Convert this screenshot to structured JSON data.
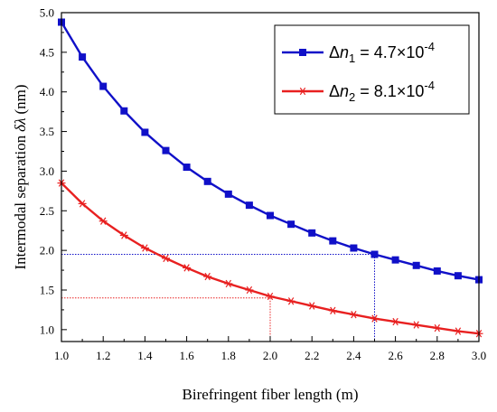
{
  "chart_data": {
    "type": "line",
    "xlabel": "Birefringent fiber length (m)",
    "ylabel_main": "Intermodal separation",
    "ylabel_symbol": "δλ",
    "ylabel_unit": "(nm)",
    "xlim": [
      1.0,
      3.0
    ],
    "ylim": [
      0.85,
      5.0
    ],
    "x_ticks": [
      1.0,
      1.2,
      1.4,
      1.6,
      1.8,
      2.0,
      2.2,
      2.4,
      2.6,
      2.8,
      3.0
    ],
    "x_tick_labels": [
      "1.0",
      "1.2",
      "1.4",
      "1.6",
      "1.8",
      "2.0",
      "2.2",
      "2.4",
      "2.6",
      "2.8",
      "3.0"
    ],
    "y_ticks": [
      1.0,
      1.5,
      2.0,
      2.5,
      3.0,
      3.5,
      4.0,
      4.5,
      5.0
    ],
    "y_tick_labels": [
      "1.0",
      "1.5",
      "2.0",
      "2.5",
      "3.0",
      "3.5",
      "4.0",
      "4.5",
      "5.0"
    ],
    "grid": false,
    "legend_placement": "top-right",
    "x": [
      1.0,
      1.1,
      1.2,
      1.3,
      1.4,
      1.5,
      1.6,
      1.7,
      1.8,
      1.9,
      2.0,
      2.1,
      2.2,
      2.3,
      2.4,
      2.5,
      2.6,
      2.7,
      2.8,
      2.9,
      3.0
    ],
    "series": [
      {
        "legend_delta": "Δ",
        "legend_var": "n",
        "legend_sub": "1",
        "legend_eq": " = 4.7×10",
        "legend_sup": "-4",
        "color": "#1010c8",
        "marker": "square",
        "values": [
          4.88,
          4.44,
          4.07,
          3.76,
          3.49,
          3.26,
          3.05,
          2.87,
          2.71,
          2.57,
          2.44,
          2.33,
          2.22,
          2.12,
          2.03,
          1.95,
          1.88,
          1.81,
          1.74,
          1.68,
          1.63
        ]
      },
      {
        "legend_delta": "Δ",
        "legend_var": "n",
        "legend_sub": "2",
        "legend_eq": " = 8.1×10",
        "legend_sup": "-4",
        "color": "#e82020",
        "marker": "asterisk",
        "values": [
          2.85,
          2.59,
          2.37,
          2.19,
          2.03,
          1.9,
          1.78,
          1.67,
          1.58,
          1.5,
          1.42,
          1.36,
          1.3,
          1.24,
          1.19,
          1.14,
          1.1,
          1.06,
          1.02,
          0.98,
          0.95
        ]
      }
    ],
    "guides": [
      {
        "color": "#1010c8",
        "x": 2.5,
        "y": 1.95
      },
      {
        "color": "#e82020",
        "x": 2.0,
        "y": 1.4
      }
    ]
  }
}
